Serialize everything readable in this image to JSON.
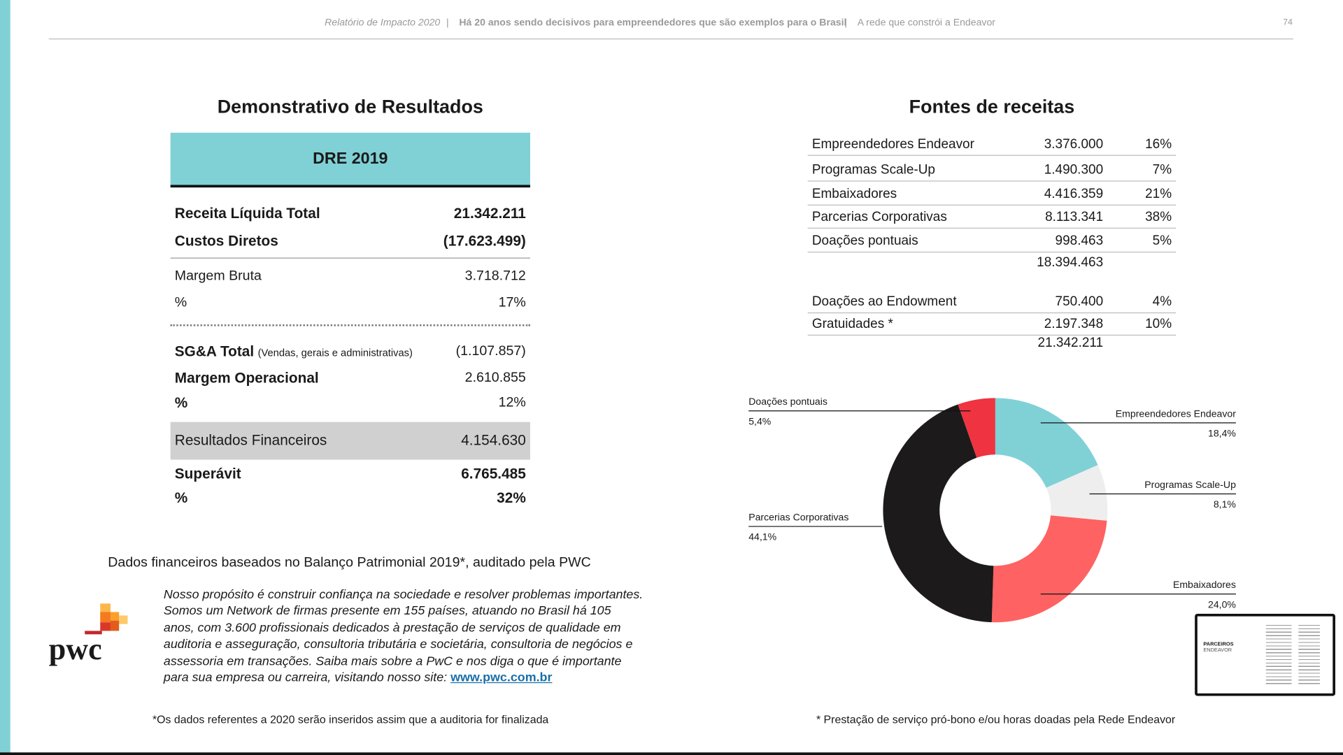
{
  "header": {
    "report": "Relatório de Impacto 2020",
    "tagline": "Há 20 anos sendo decisivos para empreendedores que são exemplos para o Brasil",
    "section": "A rede que constrói a Endeavor",
    "page": "74"
  },
  "dre": {
    "title": "Demonstrativo de Resultados",
    "header": "DRE 2019",
    "rows": [
      {
        "label": "Receita Líquida Total",
        "value": "21.342.211"
      },
      {
        "label": "Custos Diretos",
        "value": "(17.623.499)"
      },
      {
        "label": "Margem Bruta",
        "value": "3.718.712"
      },
      {
        "label": "%",
        "value": "17%"
      },
      {
        "label": "SG&A Total",
        "note": "(Vendas, gerais e administrativas)",
        "value": "(1.107.857)"
      },
      {
        "label": "Margem Operacional",
        "value": "2.610.855"
      },
      {
        "label": "%",
        "value": "12%"
      },
      {
        "label": "Resultados Financeiros",
        "value": "4.154.630"
      },
      {
        "label": "Superávit",
        "value": "6.765.485"
      },
      {
        "label": "%",
        "value": "32%"
      }
    ]
  },
  "fontes": {
    "title": "Fontes de receitas",
    "rows": [
      [
        "Empreendedores Endeavor",
        "3.376.000",
        "16%"
      ],
      [
        "Programas Scale-Up",
        "1.490.300",
        "7%"
      ],
      [
        "Embaixadores",
        "4.416.359",
        "21%"
      ],
      [
        "Parcerias Corporativas",
        "8.113.341",
        "38%"
      ],
      [
        "Doações pontuais",
        "998.463",
        "5%"
      ]
    ],
    "subtotal": "18.394.463",
    "rows2": [
      [
        "Doações ao Endowment",
        "750.400",
        "4%"
      ],
      [
        "Gratuidades *",
        "2.197.348",
        "10%"
      ]
    ],
    "total": "21.342.211"
  },
  "chart_data": {
    "type": "pie",
    "donut": true,
    "categories": [
      "Empreendedores Endeavor",
      "Programas Scale-Up",
      "Embaixadores",
      "Parcerias Corporativas",
      "Doações pontuais"
    ],
    "values": [
      18.4,
      8.1,
      24.0,
      44.1,
      5.4
    ],
    "value_labels": [
      "18,4%",
      "8,1%",
      "24,0%",
      "44,1%",
      "5,4%"
    ],
    "colors": [
      "#80d1d6",
      "#eeeeee",
      "#ff6262",
      "#1c1a1b",
      "#ef3340"
    ]
  },
  "auditor": {
    "caption": "Dados financeiros baseados no Balanço Patrimonial 2019*, auditado pela PWC",
    "logo": "pwc",
    "text": "Nosso propósito é construir confiança na sociedade e resolver problemas importantes. Somos um Network de firmas presente em 155 países, atuando no Brasil há 105 anos, com 3.600 profissionais dedicados à prestação de serviços de qualidade em auditoria e asseguração, consultoria tributária e societária, consultoria de negócios e assessoria em transações. Saiba mais sobre a PwC e nos diga o que é importante para sua empresa ou carreira, visitando nosso site:",
    "link": "www.pwc.com.br"
  },
  "footnotes": {
    "left": "*Os dados referentes a 2020 serão inseridos assim que a auditoria for finalizada",
    "right": "* Prestação de serviço pró-bono e/ou horas doadas pela Rede Endeavor"
  },
  "thumbnail": {
    "title": "PARCEIROS",
    "subtitle": "ENDEAVOR"
  }
}
